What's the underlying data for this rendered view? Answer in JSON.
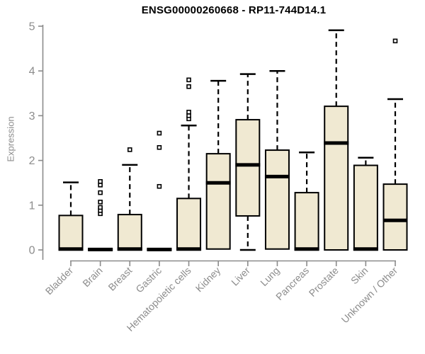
{
  "chart_data": {
    "type": "boxplot",
    "title": "ENSG00000260668 - RP11-744D14.1",
    "xlabel": "",
    "ylabel": "Expression",
    "ylim": [
      0,
      5
    ],
    "yticks": [
      0,
      1,
      2,
      3,
      4,
      5
    ],
    "grid": false,
    "legend": null,
    "categories": [
      "Bladder",
      "Brain",
      "Breast",
      "Gastric",
      "Hematopoietic cells",
      "Kidney",
      "Liver",
      "Lung",
      "Pancreas",
      "Prostate",
      "Skin",
      "Unknown / Other"
    ],
    "boxes": [
      {
        "category": "Bladder",
        "low": 0,
        "q1": 0,
        "median": 0.02,
        "q3": 0.77,
        "high": 1.51,
        "outliers": []
      },
      {
        "category": "Brain",
        "low": 0,
        "q1": 0,
        "median": 0.01,
        "q3": 0.02,
        "high": 0.02,
        "outliers": [
          0.81,
          0.88,
          0.95,
          1.07,
          1.28,
          1.45,
          1.53
        ]
      },
      {
        "category": "Breast",
        "low": 0,
        "q1": 0,
        "median": 0.02,
        "q3": 0.79,
        "high": 1.9,
        "outliers": [
          2.24
        ]
      },
      {
        "category": "Gastric",
        "low": 0,
        "q1": 0,
        "median": 0.01,
        "q3": 0.02,
        "high": 0.02,
        "outliers": [
          1.42,
          2.29,
          2.61
        ]
      },
      {
        "category": "Hematopoietic cells",
        "low": 0,
        "q1": 0,
        "median": 0.02,
        "q3": 1.15,
        "high": 2.78,
        "outliers": [
          2.93,
          3.0,
          3.08,
          3.65,
          3.8
        ]
      },
      {
        "category": "Kidney",
        "low": 0.02,
        "q1": 0.02,
        "median": 1.5,
        "q3": 2.15,
        "high": 3.78,
        "outliers": []
      },
      {
        "category": "Liver",
        "low": 0,
        "q1": 0.76,
        "median": 1.9,
        "q3": 2.91,
        "high": 3.93,
        "outliers": []
      },
      {
        "category": "Lung",
        "low": 0.02,
        "q1": 0.02,
        "median": 1.64,
        "q3": 2.23,
        "high": 4.0,
        "outliers": []
      },
      {
        "category": "Pancreas",
        "low": 0,
        "q1": 0,
        "median": 0.02,
        "q3": 1.28,
        "high": 2.18,
        "outliers": []
      },
      {
        "category": "Prostate",
        "low": 0,
        "q1": 0,
        "median": 2.39,
        "q3": 3.21,
        "high": 4.91,
        "outliers": []
      },
      {
        "category": "Skin",
        "low": 0,
        "q1": 0,
        "median": 0.02,
        "q3": 1.89,
        "high": 2.06,
        "outliers": []
      },
      {
        "category": "Unknown / Other",
        "low": 0,
        "q1": 0,
        "median": 0.66,
        "q3": 1.47,
        "high": 3.37,
        "outliers": [
          4.67
        ]
      }
    ],
    "colors": {
      "box_fill": "#F0E9D2",
      "box_border": "#000000",
      "median": "#000000",
      "whisker": "#000000",
      "outlier_stroke": "#000000",
      "outlier_fill": "#FFFFFF",
      "axis": "#8B8B8B",
      "tick_label": "#8C8C8C",
      "title": "#000000"
    }
  }
}
